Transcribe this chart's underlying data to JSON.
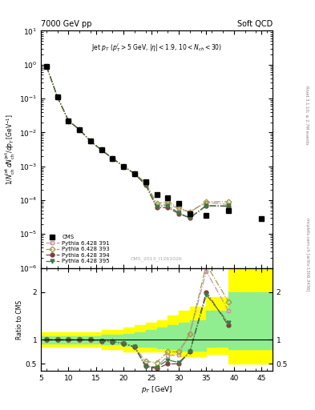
{
  "title_left": "7000 GeV pp",
  "title_right": "Soft QCD",
  "watermark": "CMS_2013_I126I026",
  "ylabel_main": "1/N$_{ch}^{jet}$ dN$_{ch}^{jet}$/dp$_T$ [GeV$^{-1}$]",
  "ylabel_ratio": "Ratio to CMS",
  "xlabel": "p$_T$ [GeV]",
  "cms_x": [
    6,
    8,
    10,
    12,
    14,
    16,
    18,
    20,
    22,
    24,
    26,
    28,
    30,
    32,
    35,
    39,
    45
  ],
  "cms_y": [
    0.9,
    0.11,
    0.022,
    0.012,
    0.0055,
    0.003,
    0.0017,
    0.001,
    0.0006,
    0.00035,
    0.00015,
    0.00012,
    8e-05,
    4e-05,
    3.5e-05,
    5e-05,
    2.8e-05
  ],
  "p391_x": [
    6,
    8,
    10,
    12,
    14,
    16,
    18,
    20,
    22,
    24,
    26,
    28,
    30,
    32,
    35,
    39
  ],
  "p391_y": [
    0.9,
    0.11,
    0.022,
    0.012,
    0.0055,
    0.003,
    0.0017,
    0.001,
    0.0006,
    0.00032,
    6.5e-05,
    8e-05,
    5.5e-05,
    4.5e-05,
    8.5e-05,
    7.5e-05
  ],
  "p393_x": [
    6,
    8,
    10,
    12,
    14,
    16,
    18,
    20,
    22,
    24,
    26,
    28,
    30,
    32,
    35,
    39
  ],
  "p393_y": [
    0.9,
    0.11,
    0.022,
    0.012,
    0.0055,
    0.003,
    0.0017,
    0.001,
    0.0006,
    0.00033,
    8e-05,
    9e-05,
    6e-05,
    4.5e-05,
    9e-05,
    9e-05
  ],
  "p394_x": [
    6,
    8,
    10,
    12,
    14,
    16,
    18,
    20,
    22,
    24,
    26,
    28,
    30,
    32,
    35,
    39
  ],
  "p394_y": [
    0.9,
    0.11,
    0.022,
    0.012,
    0.0055,
    0.003,
    0.0017,
    0.001,
    0.0006,
    0.00028,
    6e-05,
    6e-05,
    4e-05,
    3e-05,
    7e-05,
    6.5e-05
  ],
  "p395_x": [
    6,
    8,
    10,
    12,
    14,
    16,
    18,
    20,
    22,
    24,
    26,
    28,
    30,
    32,
    35,
    39
  ],
  "p395_y": [
    0.9,
    0.11,
    0.022,
    0.012,
    0.0055,
    0.003,
    0.0017,
    0.001,
    0.0006,
    0.00028,
    6.5e-05,
    7e-05,
    4.2e-05,
    3e-05,
    6.8e-05,
    6.8e-05
  ],
  "ratio_391_x": [
    6,
    8,
    10,
    12,
    14,
    16,
    18,
    20,
    22,
    24,
    26,
    28,
    30,
    32,
    35,
    39
  ],
  "ratio_391": [
    1.0,
    1.0,
    1.0,
    1.0,
    1.0,
    0.98,
    0.96,
    0.93,
    0.85,
    0.47,
    0.43,
    0.67,
    0.69,
    1.13,
    2.43,
    1.61
  ],
  "ratio_393": [
    1.0,
    1.0,
    1.0,
    1.0,
    1.0,
    0.98,
    0.97,
    0.93,
    0.85,
    0.55,
    0.53,
    0.75,
    0.75,
    1.13,
    2.57,
    1.8
  ],
  "ratio_394": [
    1.0,
    1.0,
    1.0,
    1.0,
    1.0,
    0.98,
    0.96,
    0.93,
    0.85,
    0.45,
    0.4,
    0.5,
    0.5,
    0.75,
    2.0,
    1.3
  ],
  "ratio_395": [
    1.0,
    1.0,
    1.0,
    1.0,
    1.0,
    0.98,
    0.96,
    0.93,
    0.85,
    0.44,
    0.43,
    0.58,
    0.53,
    0.75,
    1.94,
    1.36
  ],
  "band_x": [
    5,
    8,
    10,
    12,
    14,
    16,
    18,
    20,
    22,
    24,
    26,
    28,
    30,
    32,
    35,
    39,
    47
  ],
  "band_yellow_low": [
    0.85,
    0.85,
    0.85,
    0.85,
    0.85,
    0.8,
    0.8,
    0.75,
    0.75,
    0.75,
    0.75,
    0.7,
    0.65,
    0.65,
    0.7,
    0.5,
    0.5
  ],
  "band_yellow_high": [
    1.15,
    1.15,
    1.15,
    1.15,
    1.15,
    1.2,
    1.2,
    1.25,
    1.3,
    1.35,
    1.4,
    1.5,
    1.6,
    1.7,
    1.9,
    2.5,
    2.5
  ],
  "band_green_low": [
    0.92,
    0.92,
    0.92,
    0.92,
    0.92,
    0.9,
    0.9,
    0.88,
    0.85,
    0.85,
    0.83,
    0.8,
    0.78,
    0.78,
    0.85,
    0.8,
    0.8
  ],
  "band_green_high": [
    1.08,
    1.08,
    1.08,
    1.08,
    1.08,
    1.1,
    1.1,
    1.12,
    1.15,
    1.2,
    1.25,
    1.3,
    1.35,
    1.4,
    1.6,
    2.0,
    2.0
  ],
  "color_391": "#c896a0",
  "color_393": "#a0a050",
  "color_394": "#804040",
  "color_395": "#407840",
  "color_cms": "#000000",
  "xlim": [
    5,
    47
  ],
  "ylim_main": [
    1e-06,
    10
  ],
  "ylim_ratio": [
    0.35,
    2.5
  ],
  "right_label1": "Rivet 3.1.10; ≥ 2.7M events",
  "right_label2": "mcplots.cern.ch [arXiv:1306.3436]"
}
